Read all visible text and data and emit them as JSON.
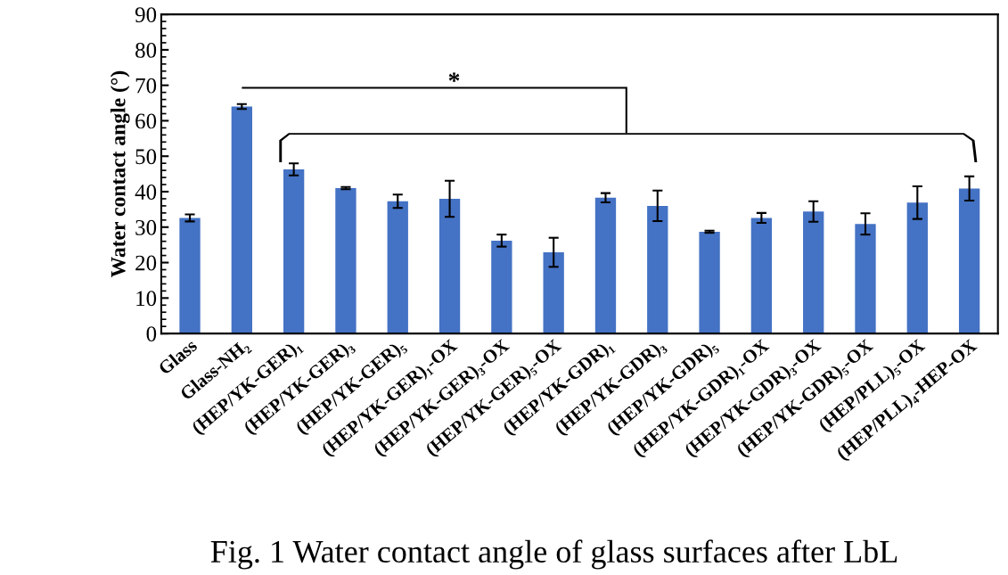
{
  "chart_data": {
    "type": "bar",
    "ylabel": "Water contact angle (°)",
    "categories": [
      "Glass",
      "Glass-NH₂",
      "(HEP/YK-GER)₁",
      "(HEP/YK-GER)₃",
      "(HEP/YK-GER)₅",
      "(HEP/YK-GER)₁-OX",
      "(HEP/YK-GER)₃-OX",
      "(HEP/YK-GER)₅-OX",
      "(HEP/YK-GDR)₁",
      "(HEP/YK-GDR)₃",
      "(HEP/YK-GDR)₅",
      "(HEP/YK-GDR)₁-OX",
      "(HEP/YK-GDR)₃-OX",
      "(HEP/YK-GDR)₅-OX",
      "(HEP/PLL)₅-OX",
      "(HEP/PLL)₄-HEP-OX"
    ],
    "values": [
      32.6,
      64.0,
      46.3,
      41.0,
      37.3,
      38.0,
      26.2,
      22.9,
      38.3,
      36.0,
      28.7,
      32.6,
      34.4,
      30.9,
      36.9,
      40.9
    ],
    "errors": [
      1.0,
      0.7,
      1.7,
      0.3,
      1.9,
      5.1,
      1.7,
      4.1,
      1.3,
      4.3,
      0.3,
      1.4,
      2.9,
      3.0,
      4.6,
      3.4
    ],
    "color": "#4472c4",
    "ylim": [
      0,
      90
    ],
    "yticks": [
      0,
      10,
      20,
      30,
      40,
      50,
      60,
      70,
      80,
      90
    ],
    "grid": false,
    "annotations": [
      "*",
      "Fig. 1 Water contact angle of glass surfaces after LbL"
    ]
  }
}
